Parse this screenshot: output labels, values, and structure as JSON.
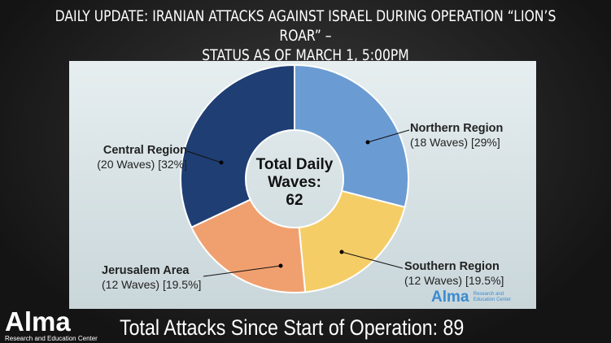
{
  "header": {
    "title_line1": "DAILY UPDATE: IRANIAN ATTACKS AGAINST ISRAEL DURING OPERATION “LION’S ROAR” –",
    "title_line2": "STATUS AS OF MARCH 1, 5:00PM"
  },
  "chart_data": {
    "type": "pie",
    "donut": true,
    "center_label": [
      "Total Daily",
      "Waves:",
      "62"
    ],
    "slices": [
      {
        "name": "Northern Region",
        "detail": "(18 Waves) [29%]",
        "waves": 18,
        "percent": 29,
        "color": "#6b9bd3"
      },
      {
        "name": "Southern Region",
        "detail": "(12 Waves) [19.5%]",
        "waves": 12,
        "percent": 19.5,
        "color": "#f5cd67"
      },
      {
        "name": "Jerusalem Area",
        "detail": "(12 Waves) [19.5%]",
        "waves": 12,
        "percent": 19.5,
        "color": "#f0a06f"
      },
      {
        "name": "Central Region",
        "detail": "(20 Waves) [32%]",
        "waves": 20,
        "percent": 32,
        "color": "#1f3e73"
      }
    ]
  },
  "panel_logo": {
    "name": "Alma",
    "tagline": "Research and Education Center"
  },
  "logo": {
    "name": "Alma",
    "tagline": "Research and Education Center"
  },
  "footer": {
    "text": "Total Attacks Since Start of Operation: 89"
  }
}
